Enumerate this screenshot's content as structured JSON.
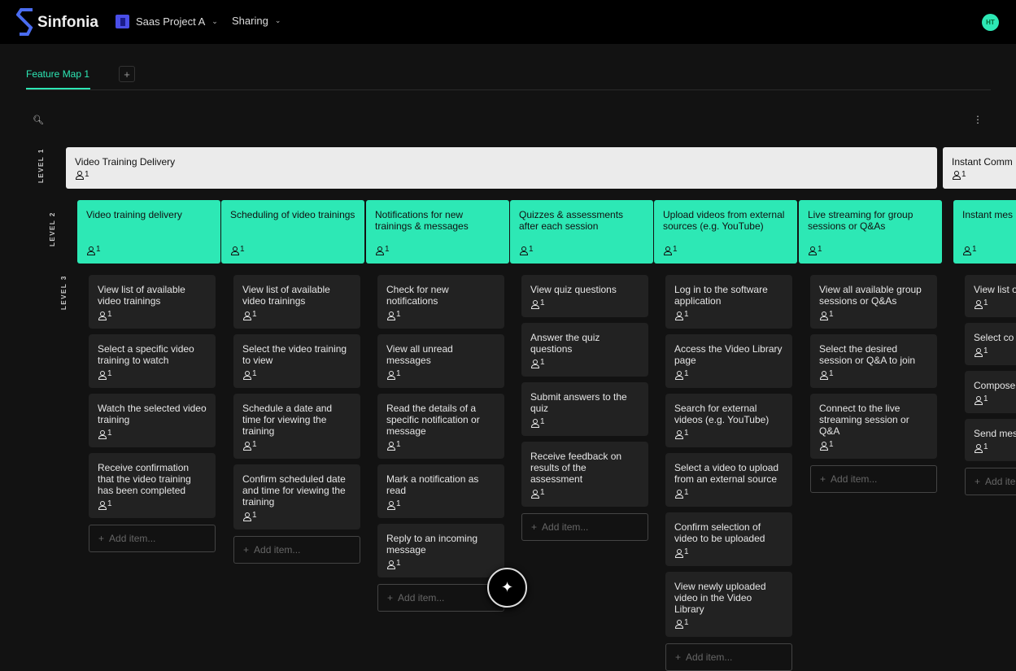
{
  "app": {
    "name": "Sinfonia"
  },
  "header": {
    "project": "Saas Project A",
    "sharing": "Sharing",
    "avatar": "HT"
  },
  "tabs": [
    {
      "label": "Feature Map 1",
      "active": true
    }
  ],
  "tab_add": "+",
  "levels": [
    "LEVEL 1",
    "LEVEL 2",
    "LEVEL 3"
  ],
  "colors": {
    "accent": "#2de8b5",
    "level1_bg": "#ebebeb",
    "card_bg": "#222222",
    "brand": "#4a4ee8"
  },
  "add_item": "Add item...",
  "level1": [
    {
      "title": "Video Training Delivery",
      "count": "1"
    },
    {
      "title": "Instant Comm",
      "count": "1"
    }
  ],
  "columns": [
    {
      "title": "Video training delivery",
      "count": "1",
      "items": [
        {
          "text": "View list of available video trainings",
          "count": "1"
        },
        {
          "text": "Select a specific video training to watch",
          "count": "1"
        },
        {
          "text": "Watch the selected video training",
          "count": "1"
        },
        {
          "text": "Receive confirmation that the video training has been completed",
          "count": "1"
        }
      ]
    },
    {
      "title": "Scheduling of video trainings",
      "count": "1",
      "items": [
        {
          "text": "View list of available video trainings",
          "count": "1"
        },
        {
          "text": "Select the video training to view",
          "count": "1"
        },
        {
          "text": "Schedule a date and time for viewing the training",
          "count": "1"
        },
        {
          "text": "Confirm scheduled date and time for viewing the training",
          "count": "1"
        }
      ]
    },
    {
      "title": "Notifications for new trainings & messages",
      "count": "1",
      "items": [
        {
          "text": "Check for new notifications",
          "count": "1"
        },
        {
          "text": "View all unread messages",
          "count": "1"
        },
        {
          "text": "Read the details of a specific notification or message",
          "count": "1"
        },
        {
          "text": "Mark a notification as read",
          "count": "1"
        },
        {
          "text": "Reply to an incoming message",
          "count": "1"
        }
      ]
    },
    {
      "title": "Quizzes & assessments after each session",
      "count": "1",
      "items": [
        {
          "text": "View quiz questions",
          "count": "1"
        },
        {
          "text": "Answer the quiz questions",
          "count": "1"
        },
        {
          "text": "Submit answers to the quiz",
          "count": "1"
        },
        {
          "text": "Receive feedback on results of the assessment",
          "count": "1"
        }
      ]
    },
    {
      "title": "Upload videos from external sources (e.g. YouTube)",
      "count": "1",
      "items": [
        {
          "text": "Log in to the software application",
          "count": "1"
        },
        {
          "text": "Access the Video Library page",
          "count": "1"
        },
        {
          "text": "Search for external videos (e.g. YouTube)",
          "count": "1"
        },
        {
          "text": "Select a video to upload from an external source",
          "count": "1"
        },
        {
          "text": "Confirm selection of video to be uploaded",
          "count": "1"
        },
        {
          "text": "View newly uploaded video in the Video Library",
          "count": "1"
        }
      ]
    },
    {
      "title": "Live streaming for group sessions or Q&As",
      "count": "1",
      "items": [
        {
          "text": "View all available group sessions or Q&As",
          "count": "1"
        },
        {
          "text": "Select the desired session or Q&A to join",
          "count": "1"
        },
        {
          "text": "Connect to the live streaming session or Q&A",
          "count": "1"
        }
      ]
    },
    {
      "title": "Instant mes",
      "count": "1",
      "items": [
        {
          "text": "View list o",
          "count": "1"
        },
        {
          "text": "Select co message",
          "count": "1"
        },
        {
          "text": "Compose",
          "count": "1"
        },
        {
          "text": "Send mes",
          "count": "1"
        }
      ]
    }
  ]
}
